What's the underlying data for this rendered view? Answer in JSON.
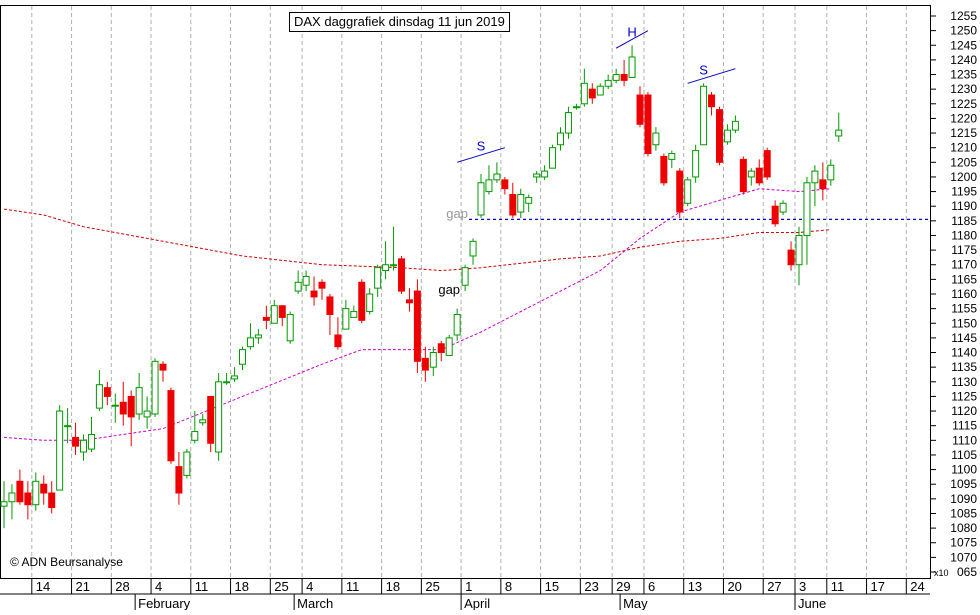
{
  "chart_data": {
    "type": "candlestick",
    "title": "DAX daggrafiek dinsdag 11 jun 2019",
    "copyright": "© ADN Beursanalyse",
    "y_scale_note": "x10",
    "yaxis": {
      "min": 10650,
      "max": 12550,
      "step": 50,
      "tick_labels": [
        "1255",
        "1250",
        "1245",
        "1240",
        "1235",
        "1230",
        "1225",
        "1220",
        "1215",
        "1210",
        "1205",
        "1200",
        "1195",
        "1190",
        "1185",
        "1180",
        "1175",
        "1170",
        "1165",
        "1160",
        "1155",
        "1150",
        "1145",
        "1140",
        "1135",
        "1130",
        "1125",
        "1120",
        "1115",
        "1110",
        "1105",
        "1100",
        "1095",
        "1090",
        "1085",
        "1080",
        "1075",
        "1070",
        "065"
      ]
    },
    "xaxis": {
      "week_labels": [
        "14",
        "21",
        "28",
        "4",
        "11",
        "18",
        "25",
        "4",
        "11",
        "18",
        "25",
        "1",
        "8",
        "15",
        "23",
        "29",
        "6",
        "13",
        "20",
        "27",
        "3",
        "11",
        "17",
        "24"
      ],
      "month_labels": [
        "February",
        "March",
        "April",
        "May",
        "June"
      ]
    },
    "colors": {
      "up": "#009900",
      "down": "#ee0000",
      "ma_short": "#cc00cc",
      "ma_long": "#cc0000",
      "support": "#0000cc",
      "pattern": "#0000cc"
    },
    "support_level": 11855,
    "annotations": [
      "S",
      "H",
      "S",
      "gap",
      "gap"
    ],
    "candles": [
      {
        "date": "2019-01-09",
        "open": 10875,
        "high": 10960,
        "low": 10800,
        "close": 10890
      },
      {
        "date": "2019-01-10",
        "open": 10890,
        "high": 10950,
        "low": 10830,
        "close": 10920
      },
      {
        "date": "2019-01-11",
        "open": 10960,
        "high": 11000,
        "low": 10880,
        "close": 10890
      },
      {
        "date": "2019-01-14",
        "open": 10920,
        "high": 10960,
        "low": 10830,
        "close": 10880
      },
      {
        "date": "2019-01-15",
        "open": 10880,
        "high": 10990,
        "low": 10860,
        "close": 10960
      },
      {
        "date": "2019-01-16",
        "open": 10950,
        "high": 10980,
        "low": 10880,
        "close": 10920
      },
      {
        "date": "2019-01-17",
        "open": 10920,
        "high": 10960,
        "low": 10850,
        "close": 10870
      },
      {
        "date": "2019-01-18",
        "open": 10930,
        "high": 11220,
        "low": 10930,
        "close": 11200
      },
      {
        "date": "2019-01-21",
        "open": 11150,
        "high": 11210,
        "low": 11090,
        "close": 11150
      },
      {
        "date": "2019-01-22",
        "open": 11110,
        "high": 11160,
        "low": 11050,
        "close": 11080
      },
      {
        "date": "2019-01-23",
        "open": 11060,
        "high": 11120,
        "low": 11030,
        "close": 11100
      },
      {
        "date": "2019-01-24",
        "open": 11070,
        "high": 11180,
        "low": 11060,
        "close": 11120
      },
      {
        "date": "2019-01-25",
        "open": 11210,
        "high": 11340,
        "low": 11200,
        "close": 11290
      },
      {
        "date": "2019-01-28",
        "open": 11280,
        "high": 11300,
        "low": 11220,
        "close": 11250
      },
      {
        "date": "2019-01-29",
        "open": 11220,
        "high": 11260,
        "low": 11160,
        "close": 11220
      },
      {
        "date": "2019-01-30",
        "open": 11230,
        "high": 11300,
        "low": 11150,
        "close": 11190
      },
      {
        "date": "2019-01-31",
        "open": 11250,
        "high": 11270,
        "low": 11080,
        "close": 11180
      },
      {
        "date": "2019-02-01",
        "open": 11190,
        "high": 11330,
        "low": 11170,
        "close": 11280
      },
      {
        "date": "2019-02-04",
        "open": 11180,
        "high": 11250,
        "low": 11140,
        "close": 11200
      },
      {
        "date": "2019-02-05",
        "open": 11190,
        "high": 11380,
        "low": 11180,
        "close": 11370
      },
      {
        "date": "2019-02-06",
        "open": 11360,
        "high": 11370,
        "low": 11300,
        "close": 11340
      },
      {
        "date": "2019-02-07",
        "open": 11270,
        "high": 11280,
        "low": 11020,
        "close": 11030
      },
      {
        "date": "2019-02-08",
        "open": 11010,
        "high": 11060,
        "low": 10880,
        "close": 10920
      },
      {
        "date": "2019-02-11",
        "open": 10980,
        "high": 11070,
        "low": 10970,
        "close": 11060
      },
      {
        "date": "2019-02-12",
        "open": 11100,
        "high": 11200,
        "low": 11090,
        "close": 11130
      },
      {
        "date": "2019-02-13",
        "open": 11160,
        "high": 11190,
        "low": 11150,
        "close": 11170
      },
      {
        "date": "2019-02-14",
        "open": 11250,
        "high": 11250,
        "low": 11060,
        "close": 11090
      },
      {
        "date": "2019-02-15",
        "open": 11060,
        "high": 11330,
        "low": 11030,
        "close": 11300
      },
      {
        "date": "2019-02-18",
        "open": 11300,
        "high": 11330,
        "low": 11290,
        "close": 11300
      },
      {
        "date": "2019-02-19",
        "open": 11310,
        "high": 11350,
        "low": 11300,
        "close": 11320
      },
      {
        "date": "2019-02-20",
        "open": 11360,
        "high": 11420,
        "low": 11340,
        "close": 11410
      },
      {
        "date": "2019-02-21",
        "open": 11420,
        "high": 11500,
        "low": 11410,
        "close": 11450
      },
      {
        "date": "2019-02-22",
        "open": 11450,
        "high": 11480,
        "low": 11430,
        "close": 11460
      },
      {
        "date": "2019-02-25",
        "open": 11520,
        "high": 11560,
        "low": 11480,
        "close": 11510
      },
      {
        "date": "2019-02-26",
        "open": 11500,
        "high": 11580,
        "low": 11500,
        "close": 11560
      },
      {
        "date": "2019-02-27",
        "open": 11560,
        "high": 11560,
        "low": 11490,
        "close": 11520
      },
      {
        "date": "2019-02-28",
        "open": 11440,
        "high": 11540,
        "low": 11430,
        "close": 11530
      },
      {
        "date": "2019-03-01",
        "open": 11610,
        "high": 11680,
        "low": 11600,
        "close": 11640
      },
      {
        "date": "2019-03-04",
        "open": 11630,
        "high": 11680,
        "low": 11610,
        "close": 11660
      },
      {
        "date": "2019-03-05",
        "open": 11610,
        "high": 11660,
        "low": 11560,
        "close": 11590
      },
      {
        "date": "2019-03-06",
        "open": 11640,
        "high": 11650,
        "low": 11580,
        "close": 11620
      },
      {
        "date": "2019-03-07",
        "open": 11590,
        "high": 11600,
        "low": 11460,
        "close": 11530
      },
      {
        "date": "2019-03-08",
        "open": 11460,
        "high": 11520,
        "low": 11410,
        "close": 11420
      },
      {
        "date": "2019-03-11",
        "open": 11480,
        "high": 11580,
        "low": 11480,
        "close": 11550
      },
      {
        "date": "2019-03-12",
        "open": 11520,
        "high": 11560,
        "low": 11520,
        "close": 11540
      },
      {
        "date": "2019-03-13",
        "open": 11640,
        "high": 11650,
        "low": 11500,
        "close": 11510
      },
      {
        "date": "2019-03-14",
        "open": 11540,
        "high": 11620,
        "low": 11530,
        "close": 11600
      },
      {
        "date": "2019-03-15",
        "open": 11620,
        "high": 11700,
        "low": 11590,
        "close": 11690
      },
      {
        "date": "2019-03-18",
        "open": 11680,
        "high": 11780,
        "low": 11650,
        "close": 11700
      },
      {
        "date": "2019-03-19",
        "open": 11700,
        "high": 11830,
        "low": 11680,
        "close": 11700
      },
      {
        "date": "2019-03-20",
        "open": 11720,
        "high": 11730,
        "low": 11600,
        "close": 11610
      },
      {
        "date": "2019-03-21",
        "open": 11580,
        "high": 11620,
        "low": 11540,
        "close": 11570
      },
      {
        "date": "2019-03-22",
        "open": 11610,
        "high": 11650,
        "low": 11330,
        "close": 11370
      },
      {
        "date": "2019-03-25",
        "open": 11380,
        "high": 11420,
        "low": 11300,
        "close": 11340
      },
      {
        "date": "2019-03-26",
        "open": 11350,
        "high": 11420,
        "low": 11320,
        "close": 11400
      },
      {
        "date": "2019-03-27",
        "open": 11430,
        "high": 11440,
        "low": 11370,
        "close": 11400
      },
      {
        "date": "2019-03-28",
        "open": 11390,
        "high": 11460,
        "low": 11400,
        "close": 11450
      },
      {
        "date": "2019-03-29",
        "open": 11460,
        "high": 11550,
        "low": 11440,
        "close": 11530
      },
      {
        "date": "2019-04-01",
        "open": 11630,
        "high": 11700,
        "low": 11610,
        "close": 11690
      },
      {
        "date": "2019-04-02",
        "open": 11730,
        "high": 11790,
        "low": 11700,
        "close": 11780
      },
      {
        "date": "2019-04-03",
        "open": 11870,
        "high": 12010,
        "low": 11860,
        "close": 11980
      },
      {
        "date": "2019-04-04",
        "open": 11950,
        "high": 12040,
        "low": 11940,
        "close": 11990
      },
      {
        "date": "2019-04-05",
        "open": 11990,
        "high": 12050,
        "low": 11980,
        "close": 12010
      },
      {
        "date": "2019-04-08",
        "open": 11990,
        "high": 12000,
        "low": 11940,
        "close": 11960
      },
      {
        "date": "2019-04-09",
        "open": 11940,
        "high": 11980,
        "low": 11860,
        "close": 11870
      },
      {
        "date": "2019-04-10",
        "open": 11880,
        "high": 11960,
        "low": 11860,
        "close": 11940
      },
      {
        "date": "2019-04-11",
        "open": 11910,
        "high": 11940,
        "low": 11880,
        "close": 11930
      },
      {
        "date": "2019-04-12",
        "open": 12000,
        "high": 12020,
        "low": 11980,
        "close": 12010
      },
      {
        "date": "2019-04-15",
        "open": 12000,
        "high": 12040,
        "low": 11990,
        "close": 12020
      },
      {
        "date": "2019-04-16",
        "open": 12030,
        "high": 12110,
        "low": 12030,
        "close": 12100
      },
      {
        "date": "2019-04-17",
        "open": 12110,
        "high": 12170,
        "low": 12090,
        "close": 12150
      },
      {
        "date": "2019-04-18",
        "open": 12150,
        "high": 12240,
        "low": 12130,
        "close": 12220
      },
      {
        "date": "2019-04-23",
        "open": 12240,
        "high": 12250,
        "low": 12230,
        "close": 12240
      },
      {
        "date": "2019-04-24",
        "open": 12250,
        "high": 12370,
        "low": 12240,
        "close": 12320
      },
      {
        "date": "2019-04-25",
        "open": 12300,
        "high": 12320,
        "low": 12250,
        "close": 12270
      },
      {
        "date": "2019-04-26",
        "open": 12280,
        "high": 12320,
        "low": 12280,
        "close": 12310
      },
      {
        "date": "2019-04-29",
        "open": 12310,
        "high": 12350,
        "low": 12300,
        "close": 12330
      },
      {
        "date": "2019-04-30",
        "open": 12330,
        "high": 12370,
        "low": 12320,
        "close": 12350
      },
      {
        "date": "2019-05-02",
        "open": 12350,
        "high": 12400,
        "low": 12310,
        "close": 12330
      },
      {
        "date": "2019-05-03",
        "open": 12340,
        "high": 12450,
        "low": 12340,
        "close": 12410
      },
      {
        "date": "2019-05-06",
        "open": 12280,
        "high": 12310,
        "low": 12170,
        "close": 12180
      },
      {
        "date": "2019-05-07",
        "open": 12280,
        "high": 12290,
        "low": 12070,
        "close": 12080
      },
      {
        "date": "2019-05-08",
        "open": 12110,
        "high": 12170,
        "low": 12090,
        "close": 12150
      },
      {
        "date": "2019-05-09",
        "open": 12070,
        "high": 12080,
        "low": 11970,
        "close": 11980
      },
      {
        "date": "2019-05-10",
        "open": 12060,
        "high": 12090,
        "low": 12030,
        "close": 12080
      },
      {
        "date": "2019-05-13",
        "open": 12020,
        "high": 12030,
        "low": 11860,
        "close": 11880
      },
      {
        "date": "2019-05-14",
        "open": 11910,
        "high": 12000,
        "low": 11900,
        "close": 11990
      },
      {
        "date": "2019-05-15",
        "open": 12000,
        "high": 12110,
        "low": 11980,
        "close": 12090
      },
      {
        "date": "2019-05-16",
        "open": 12110,
        "high": 12320,
        "low": 12110,
        "close": 12310
      },
      {
        "date": "2019-05-17",
        "open": 12280,
        "high": 12290,
        "low": 12210,
        "close": 12240
      },
      {
        "date": "2019-05-20",
        "open": 12230,
        "high": 12240,
        "low": 12040,
        "close": 12050
      },
      {
        "date": "2019-05-21",
        "open": 12120,
        "high": 12180,
        "low": 12110,
        "close": 12160
      },
      {
        "date": "2019-05-22",
        "open": 12160,
        "high": 12210,
        "low": 12150,
        "close": 12190
      },
      {
        "date": "2019-05-23",
        "open": 12060,
        "high": 12070,
        "low": 11940,
        "close": 11950
      },
      {
        "date": "2019-05-24",
        "open": 12000,
        "high": 12030,
        "low": 11970,
        "close": 12020
      },
      {
        "date": "2019-05-27",
        "open": 12030,
        "high": 12060,
        "low": 11970,
        "close": 11980
      },
      {
        "date": "2019-05-28",
        "open": 12090,
        "high": 12100,
        "low": 11990,
        "close": 12000
      },
      {
        "date": "2019-05-29",
        "open": 11900,
        "high": 11920,
        "low": 11830,
        "close": 11840
      },
      {
        "date": "2019-05-30",
        "open": 11880,
        "high": 11920,
        "low": 11870,
        "close": 11910
      },
      {
        "date": "2019-05-31",
        "open": 11750,
        "high": 11780,
        "low": 11680,
        "close": 11700
      },
      {
        "date": "2019-06-03",
        "open": 11700,
        "high": 11830,
        "low": 11630,
        "close": 11800
      },
      {
        "date": "2019-06-04",
        "open": 11800,
        "high": 12000,
        "low": 11700,
        "close": 11980
      },
      {
        "date": "2019-06-05",
        "open": 11980,
        "high": 12040,
        "low": 11900,
        "close": 12020
      },
      {
        "date": "2019-06-06",
        "open": 11990,
        "high": 12050,
        "low": 11920,
        "close": 11960
      },
      {
        "date": "2019-06-07",
        "open": 11990,
        "high": 12060,
        "low": 11970,
        "close": 12040
      },
      {
        "date": "2019-06-11",
        "open": 12140,
        "high": 12220,
        "low": 12120,
        "close": 12160
      }
    ],
    "ma_short": [
      [
        0,
        11110
      ],
      [
        5,
        11100
      ],
      [
        10,
        11100
      ],
      [
        20,
        11140
      ],
      [
        30,
        11250
      ],
      [
        40,
        11360
      ],
      [
        45,
        11410
      ],
      [
        55,
        11410
      ],
      [
        60,
        11470
      ],
      [
        70,
        11610
      ],
      [
        75,
        11680
      ],
      [
        80,
        11790
      ],
      [
        85,
        11880
      ],
      [
        90,
        11920
      ],
      [
        95,
        11960
      ],
      [
        100,
        11950
      ],
      [
        104,
        11960
      ]
    ],
    "ma_long": [
      [
        0,
        11890
      ],
      [
        5,
        11870
      ],
      [
        10,
        11830
      ],
      [
        20,
        11780
      ],
      [
        30,
        11730
      ],
      [
        40,
        11700
      ],
      [
        50,
        11690
      ],
      [
        55,
        11680
      ],
      [
        60,
        11690
      ],
      [
        70,
        11720
      ],
      [
        75,
        11730
      ],
      [
        80,
        11760
      ],
      [
        85,
        11780
      ],
      [
        90,
        11790
      ],
      [
        95,
        11810
      ],
      [
        100,
        11810
      ],
      [
        104,
        11820
      ]
    ]
  }
}
